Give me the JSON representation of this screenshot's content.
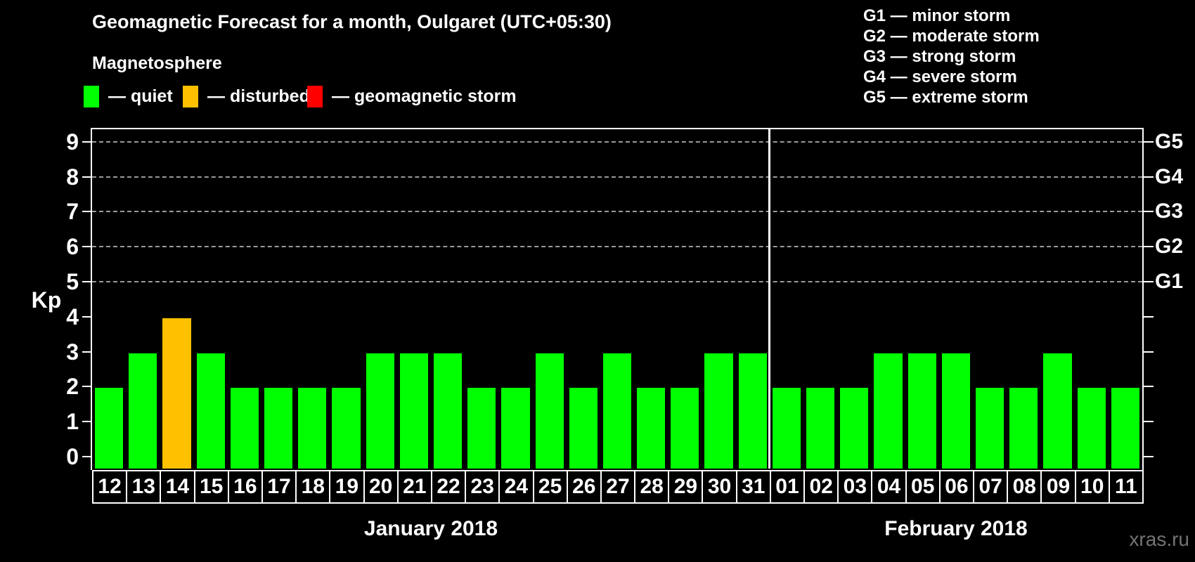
{
  "header": {
    "title": "Geomagnetic Forecast for a month, Oulgaret (UTC+05:30)",
    "subtitle": "Magnetosphere",
    "watermark": "xras.ru"
  },
  "legend": {
    "items": [
      {
        "status": "quiet",
        "label": "— quiet",
        "color": "#00ff00"
      },
      {
        "status": "disturbed",
        "label": "— disturbed",
        "color": "#ffc000"
      },
      {
        "status": "storm",
        "label": "— geomagnetic storm",
        "color": "#ff0000"
      }
    ]
  },
  "storm_scale": {
    "lines": [
      "G1 — minor storm",
      "G2 — moderate storm",
      "G3 — strong storm",
      "G4 — severe storm",
      "G5 — extreme storm"
    ]
  },
  "chart_data": {
    "type": "bar",
    "title": "Geomagnetic Forecast for a month, Oulgaret (UTC+05:30)",
    "ylabel": "Kp",
    "ylim": [
      0,
      9
    ],
    "yticks": [
      0,
      1,
      2,
      3,
      4,
      5,
      6,
      7,
      8,
      9
    ],
    "gridlines_at_kp": [
      5,
      6,
      7,
      8,
      9
    ],
    "grid": "dashed horizontal at storm levels only",
    "legend_position": "top",
    "right_axis": [
      {
        "kp": 5,
        "label": "G1"
      },
      {
        "kp": 6,
        "label": "G2"
      },
      {
        "kp": 7,
        "label": "G3"
      },
      {
        "kp": 8,
        "label": "G4"
      },
      {
        "kp": 9,
        "label": "G5"
      }
    ],
    "status_colors": {
      "quiet": "#00ff00",
      "disturbed": "#ffc000",
      "storm": "#ff0000"
    },
    "months": [
      {
        "label": "January 2018",
        "points": [
          {
            "day": "12",
            "kp": 2,
            "status": "quiet"
          },
          {
            "day": "13",
            "kp": 3,
            "status": "quiet"
          },
          {
            "day": "14",
            "kp": 4,
            "status": "disturbed"
          },
          {
            "day": "15",
            "kp": 3,
            "status": "quiet"
          },
          {
            "day": "16",
            "kp": 2,
            "status": "quiet"
          },
          {
            "day": "17",
            "kp": 2,
            "status": "quiet"
          },
          {
            "day": "18",
            "kp": 2,
            "status": "quiet"
          },
          {
            "day": "19",
            "kp": 2,
            "status": "quiet"
          },
          {
            "day": "20",
            "kp": 3,
            "status": "quiet"
          },
          {
            "day": "21",
            "kp": 3,
            "status": "quiet"
          },
          {
            "day": "22",
            "kp": 3,
            "status": "quiet"
          },
          {
            "day": "23",
            "kp": 2,
            "status": "quiet"
          },
          {
            "day": "24",
            "kp": 2,
            "status": "quiet"
          },
          {
            "day": "25",
            "kp": 3,
            "status": "quiet"
          },
          {
            "day": "26",
            "kp": 2,
            "status": "quiet"
          },
          {
            "day": "27",
            "kp": 3,
            "status": "quiet"
          },
          {
            "day": "28",
            "kp": 2,
            "status": "quiet"
          },
          {
            "day": "29",
            "kp": 2,
            "status": "quiet"
          },
          {
            "day": "30",
            "kp": 3,
            "status": "quiet"
          },
          {
            "day": "31",
            "kp": 3,
            "status": "quiet"
          }
        ]
      },
      {
        "label": "February 2018",
        "points": [
          {
            "day": "01",
            "kp": 2,
            "status": "quiet"
          },
          {
            "day": "02",
            "kp": 2,
            "status": "quiet"
          },
          {
            "day": "03",
            "kp": 2,
            "status": "quiet"
          },
          {
            "day": "04",
            "kp": 3,
            "status": "quiet"
          },
          {
            "day": "05",
            "kp": 3,
            "status": "quiet"
          },
          {
            "day": "06",
            "kp": 3,
            "status": "quiet"
          },
          {
            "day": "07",
            "kp": 2,
            "status": "quiet"
          },
          {
            "day": "08",
            "kp": 2,
            "status": "quiet"
          },
          {
            "day": "09",
            "kp": 3,
            "status": "quiet"
          },
          {
            "day": "10",
            "kp": 2,
            "status": "quiet"
          },
          {
            "day": "11",
            "kp": 2,
            "status": "quiet"
          }
        ]
      }
    ]
  }
}
